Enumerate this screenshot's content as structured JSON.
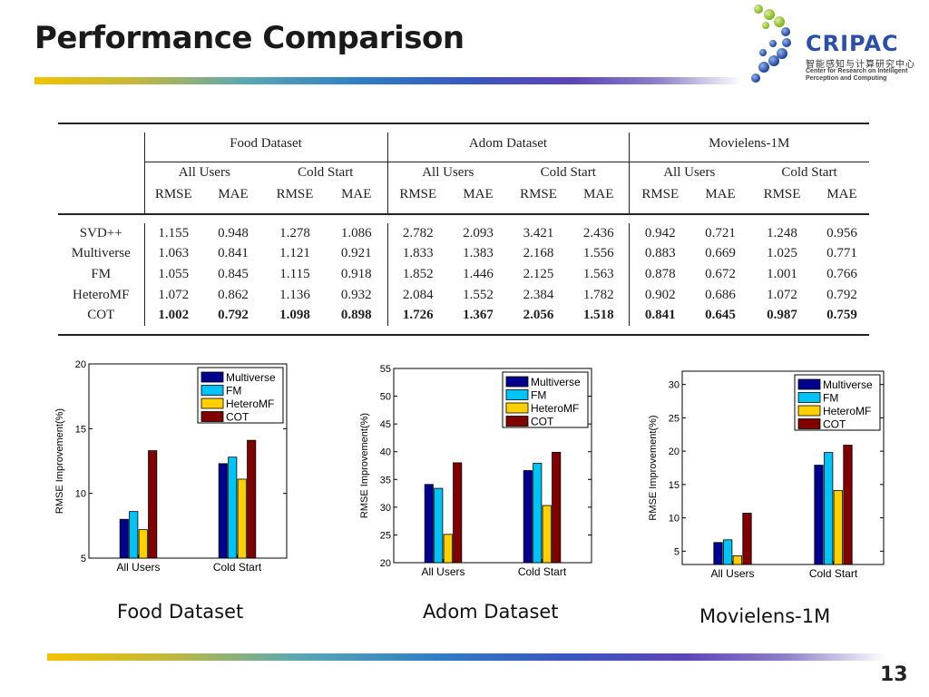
{
  "slide": {
    "title": "Performance Comparison",
    "logo": {
      "name": "CRIPAC",
      "chinese": "智能感知与计算研究中心",
      "english_line1": "Center for Research on Intelligent",
      "english_line2": "Perception and Computing"
    },
    "page_number": "13"
  },
  "table": {
    "datasets": [
      "Food Dataset",
      "Adom Dataset",
      "Movielens-1M"
    ],
    "settings": [
      "All Users",
      "Cold Start"
    ],
    "metrics": [
      "RMSE",
      "MAE"
    ],
    "rows": [
      {
        "method": "SVD++",
        "values": [
          "1.155",
          "0.948",
          "1.278",
          "1.086",
          "2.782",
          "2.093",
          "3.421",
          "2.436",
          "0.942",
          "0.721",
          "1.248",
          "0.956"
        ]
      },
      {
        "method": "Multiverse",
        "values": [
          "1.063",
          "0.841",
          "1.121",
          "0.921",
          "1.833",
          "1.383",
          "2.168",
          "1.556",
          "0.883",
          "0.669",
          "1.025",
          "0.771"
        ]
      },
      {
        "method": "FM",
        "values": [
          "1.055",
          "0.845",
          "1.115",
          "0.918",
          "1.852",
          "1.446",
          "2.125",
          "1.563",
          "0.878",
          "0.672",
          "1.001",
          "0.766"
        ]
      },
      {
        "method": "HeteroMF",
        "values": [
          "1.072",
          "0.862",
          "1.136",
          "0.932",
          "2.084",
          "1.552",
          "2.384",
          "1.782",
          "0.902",
          "0.686",
          "1.072",
          "0.792"
        ]
      },
      {
        "method": "COT",
        "bold": true,
        "values": [
          "1.002",
          "0.792",
          "1.098",
          "0.898",
          "1.726",
          "1.367",
          "2.056",
          "1.518",
          "0.841",
          "0.645",
          "0.987",
          "0.759"
        ]
      }
    ]
  },
  "chart_data": [
    {
      "type": "bar",
      "caption": "Food Dataset",
      "ylabel": "RMSE Improvement(%)",
      "ylim": [
        5,
        20
      ],
      "yticks": [
        5,
        10,
        15,
        20
      ],
      "categories": [
        "All Users",
        "Cold Start"
      ],
      "legend_position": "top-right",
      "series": [
        {
          "name": "Multiverse",
          "color": "#00008f",
          "values": [
            8.0,
            12.3
          ]
        },
        {
          "name": "FM",
          "color": "#00c3f7",
          "values": [
            8.6,
            12.8
          ]
        },
        {
          "name": "HeteroMF",
          "color": "#ffd000",
          "values": [
            7.2,
            11.1
          ]
        },
        {
          "name": "COT",
          "color": "#800000",
          "values": [
            13.3,
            14.1
          ]
        }
      ]
    },
    {
      "type": "bar",
      "caption": "Adom Dataset",
      "ylabel": "RMSE Improvement(%)",
      "ylim": [
        20,
        55
      ],
      "yticks": [
        20,
        25,
        30,
        35,
        40,
        45,
        50,
        55
      ],
      "categories": [
        "All Users",
        "Cold Start"
      ],
      "legend_position": "top-right",
      "series": [
        {
          "name": "Multiverse",
          "color": "#00008f",
          "values": [
            34.1,
            36.6
          ]
        },
        {
          "name": "FM",
          "color": "#00c3f7",
          "values": [
            33.4,
            37.9
          ]
        },
        {
          "name": "HeteroMF",
          "color": "#ffd000",
          "values": [
            25.1,
            30.3
          ]
        },
        {
          "name": "COT",
          "color": "#800000",
          "values": [
            38.0,
            39.9
          ]
        }
      ]
    },
    {
      "type": "bar",
      "caption": "Movielens-1M",
      "ylabel": "RMSE Improvement(%)",
      "ylim": [
        3,
        32
      ],
      "yticks": [
        5,
        10,
        15,
        20,
        25,
        30
      ],
      "categories": [
        "All Users",
        "Cold Start"
      ],
      "legend_position": "top-right",
      "series": [
        {
          "name": "Multiverse",
          "color": "#00008f",
          "values": [
            6.3,
            17.9
          ]
        },
        {
          "name": "FM",
          "color": "#00c3f7",
          "values": [
            6.7,
            19.8
          ]
        },
        {
          "name": "HeteroMF",
          "color": "#ffd000",
          "values": [
            4.3,
            14.1
          ]
        },
        {
          "name": "COT",
          "color": "#800000",
          "values": [
            10.7,
            20.9
          ]
        }
      ]
    }
  ]
}
